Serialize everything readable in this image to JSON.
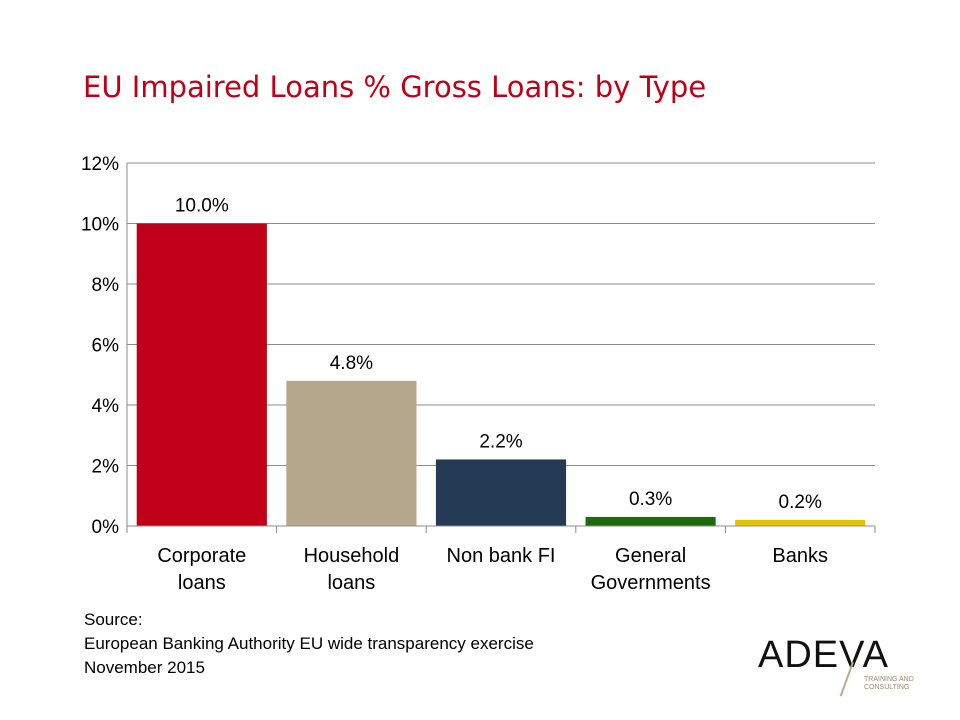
{
  "title": "EU Impaired Loans % Gross Loans: by Type",
  "chart_data": {
    "type": "bar",
    "categories": [
      [
        "Corporate",
        "loans"
      ],
      [
        "Household",
        "loans"
      ],
      [
        "Non bank FI"
      ],
      [
        "General",
        "Governments"
      ],
      [
        "Banks"
      ]
    ],
    "values": [
      10.0,
      4.8,
      2.2,
      0.3,
      0.2
    ],
    "data_labels": [
      "10.0%",
      "4.8%",
      "2.2%",
      "0.3%",
      "0.2%"
    ],
    "colors": [
      "#c00018",
      "#b5a78b",
      "#253a55",
      "#1e6b0e",
      "#e3c300"
    ],
    "ylim": [
      0,
      12
    ],
    "yticks": [
      0,
      2,
      4,
      6,
      8,
      10,
      12
    ],
    "ytick_labels": [
      "0%",
      "2%",
      "4%",
      "6%",
      "8%",
      "10%",
      "12%"
    ],
    "grid": true,
    "legend": "none"
  },
  "source": {
    "line1": "Source:",
    "line2": "European Banking Authority EU wide transparency exercise",
    "line3": "November 2015"
  },
  "logo": {
    "word": "ADEVA",
    "tagline1": "TRAINING AND",
    "tagline2": "CONSULTING"
  }
}
